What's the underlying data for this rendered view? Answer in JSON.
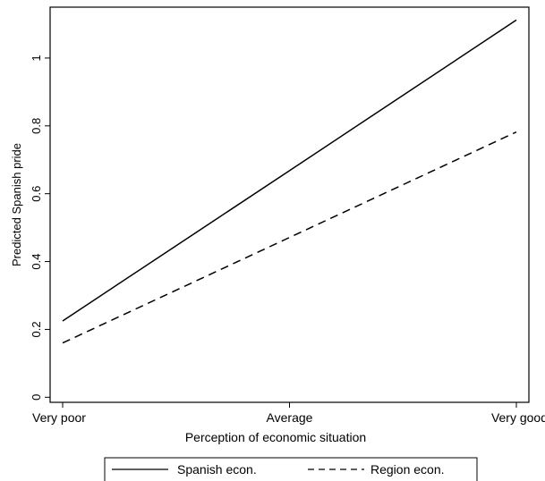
{
  "chart_data": {
    "type": "line",
    "title": "",
    "xlabel": "Perception of economic situation",
    "ylabel": "Predicted Spanish pride",
    "categories": [
      "Very poor",
      "Average",
      "Very good"
    ],
    "y_ticks": [
      0,
      0.2,
      0.4,
      0.6,
      0.8,
      1
    ],
    "ylim": [
      -0.015,
      1.15
    ],
    "grid": false,
    "legend_position": "bottom",
    "series": [
      {
        "name": "Spanish econ.",
        "style": "solid",
        "color": "#000000",
        "values": [
          0.225,
          0.668,
          1.112
        ]
      },
      {
        "name": "Region econ.",
        "style": "dashed",
        "color": "#000000",
        "values": [
          0.16,
          0.471,
          0.782
        ]
      }
    ]
  }
}
